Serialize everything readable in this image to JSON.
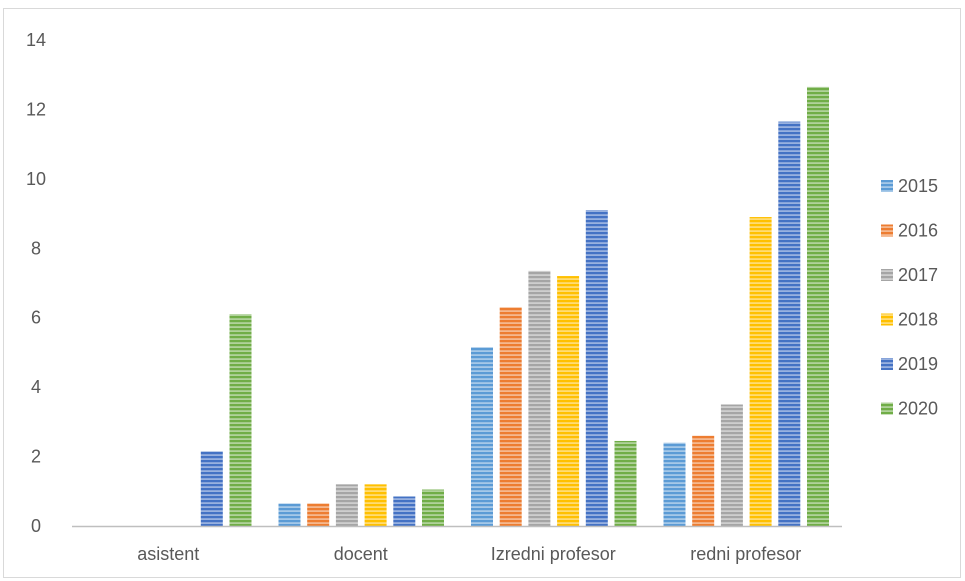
{
  "chart_data": {
    "type": "bar",
    "categories": [
      "asistent",
      "docent",
      "Izredni profesor",
      "redni profesor"
    ],
    "series": [
      {
        "name": "2015",
        "color": "#5b9bd5",
        "values": [
          0,
          0.65,
          5.15,
          2.4
        ]
      },
      {
        "name": "2016",
        "color": "#ed7d31",
        "values": [
          0,
          0.65,
          6.3,
          2.6
        ]
      },
      {
        "name": "2017",
        "color": "#a5a5a5",
        "values": [
          0,
          1.2,
          7.35,
          3.5
        ]
      },
      {
        "name": "2018",
        "color": "#ffc000",
        "values": [
          0,
          1.2,
          7.2,
          8.9
        ]
      },
      {
        "name": "2019",
        "color": "#4472c4",
        "values": [
          2.15,
          0.85,
          9.1,
          11.65
        ]
      },
      {
        "name": "2020",
        "color": "#70ad47",
        "values": [
          6.1,
          1.05,
          2.45,
          12.65
        ]
      }
    ],
    "ylim": [
      0,
      14
    ],
    "yticks": [
      "0",
      "2",
      "4",
      "6",
      "8",
      "10",
      "12",
      "14"
    ],
    "grid": false,
    "legend_position": "right",
    "bar_pattern": "horizontal-stripes"
  }
}
